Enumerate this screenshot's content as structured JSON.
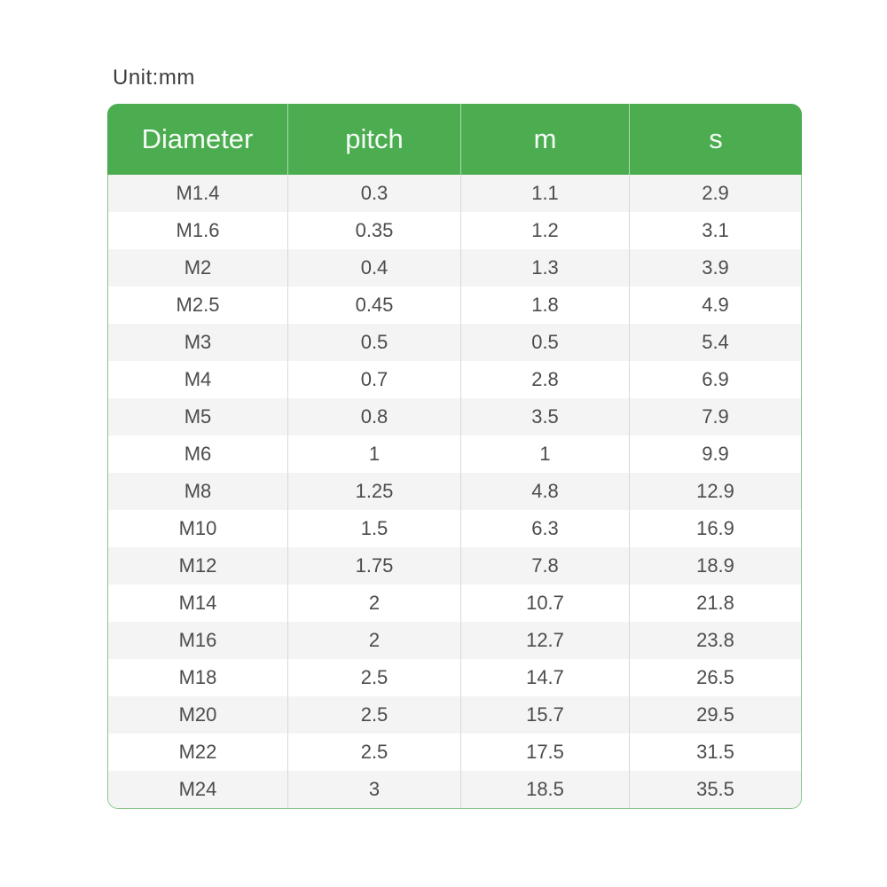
{
  "unit_label": "Unit:mm",
  "colors": {
    "header_green": "#4bad50",
    "table_border_green": "#86c98a",
    "stripe_gray": "#f4f4f4",
    "row_white": "#ffffff",
    "cell_separator_gray": "#d9d9d9",
    "header_text": "#f6fbf6",
    "body_text": "#4c4c4c"
  },
  "chart_data": {
    "type": "table",
    "title": "Unit:mm",
    "columns": [
      "Diameter",
      "pitch",
      "m",
      "s"
    ],
    "rows": [
      [
        "M1.4",
        "0.3",
        "1.1",
        "2.9"
      ],
      [
        "M1.6",
        "0.35",
        "1.2",
        "3.1"
      ],
      [
        "M2",
        "0.4",
        "1.3",
        "3.9"
      ],
      [
        "M2.5",
        "0.45",
        "1.8",
        "4.9"
      ],
      [
        "M3",
        "0.5",
        "0.5",
        "5.4"
      ],
      [
        "M4",
        "0.7",
        "2.8",
        "6.9"
      ],
      [
        "M5",
        "0.8",
        "3.5",
        "7.9"
      ],
      [
        "M6",
        "1",
        "1",
        "9.9"
      ],
      [
        "M8",
        "1.25",
        "4.8",
        "12.9"
      ],
      [
        "M10",
        "1.5",
        "6.3",
        "16.9"
      ],
      [
        "M12",
        "1.75",
        "7.8",
        "18.9"
      ],
      [
        "M14",
        "2",
        "10.7",
        "21.8"
      ],
      [
        "M16",
        "2",
        "12.7",
        "23.8"
      ],
      [
        "M18",
        "2.5",
        "14.7",
        "26.5"
      ],
      [
        "M20",
        "2.5",
        "15.7",
        "29.5"
      ],
      [
        "M22",
        "2.5",
        "17.5",
        "31.5"
      ],
      [
        "M24",
        "3",
        "18.5",
        "35.5"
      ]
    ]
  }
}
